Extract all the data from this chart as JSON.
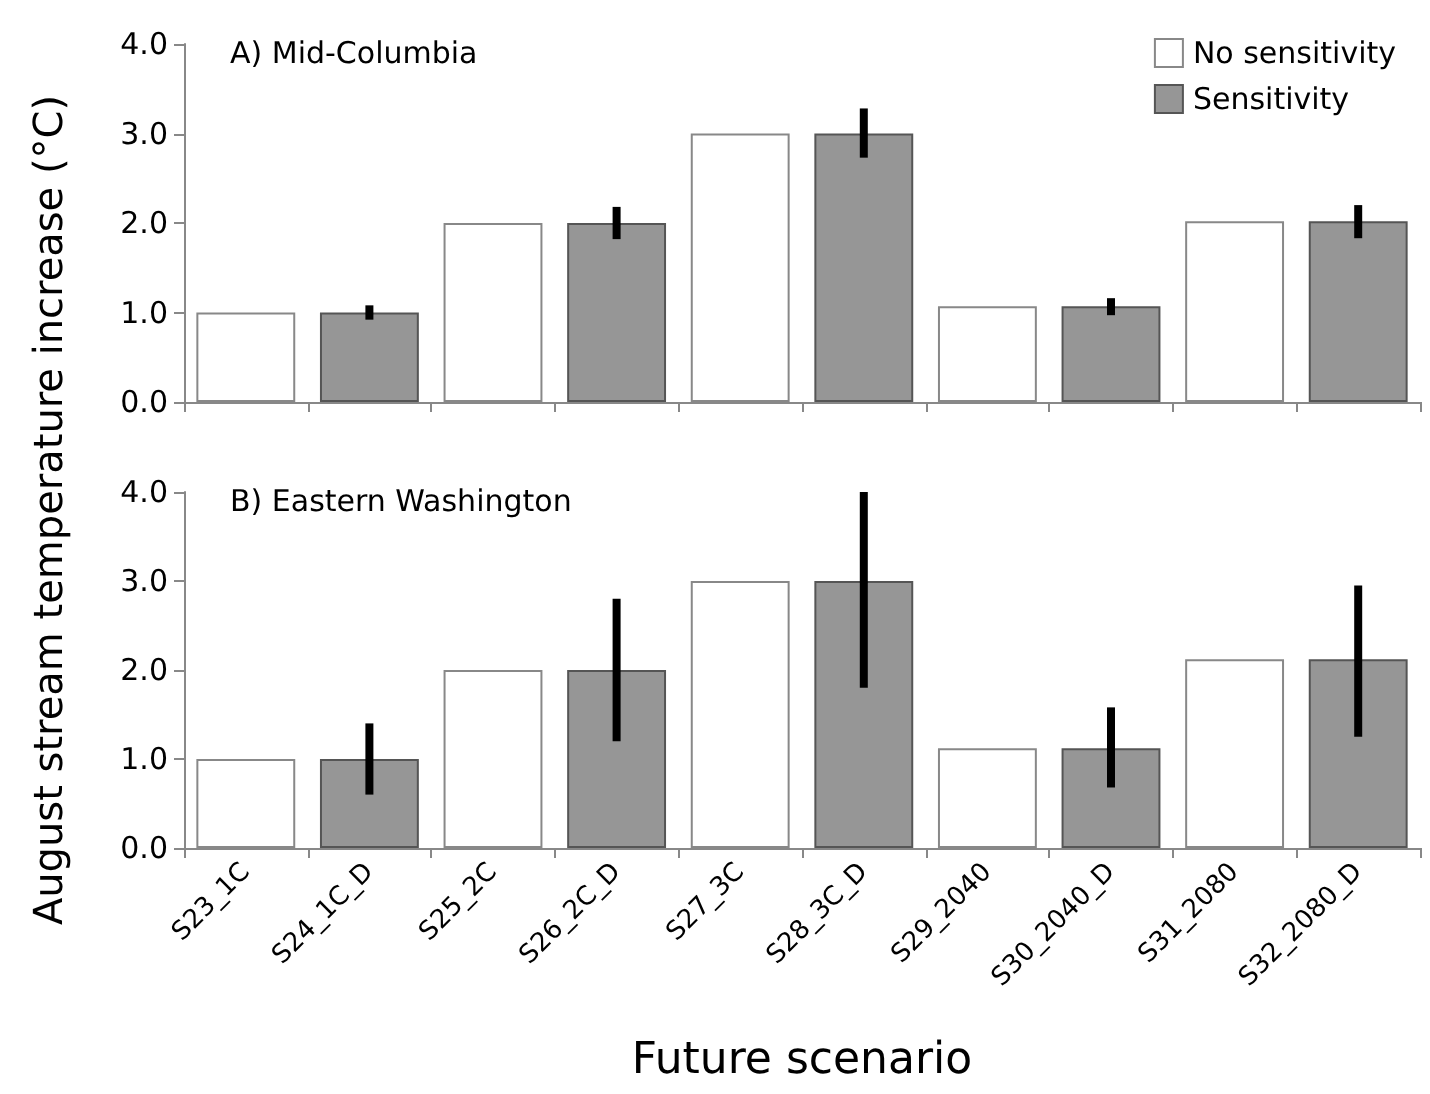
{
  "chart_data": [
    {
      "type": "bar",
      "title": "A) Mid-Columbia",
      "ylabel": "August stream temperature increase (°C)",
      "categories": [
        null,
        null,
        null,
        null,
        null,
        null,
        null,
        null,
        null,
        null
      ],
      "series": [
        {
          "name": "No sensitivity",
          "color": "#ffffff",
          "values": [
            1.0,
            null,
            2.0,
            null,
            3.0,
            null,
            1.07,
            null,
            2.02,
            null
          ]
        },
        {
          "name": "Sensitivity",
          "color": "#969696",
          "values": [
            null,
            1.0,
            null,
            2.0,
            null,
            3.0,
            null,
            1.07,
            null,
            2.02
          ],
          "errors": [
            null,
            [
              0.92,
              1.08
            ],
            null,
            [
              1.82,
              2.18
            ],
            null,
            [
              2.73,
              3.28
            ],
            null,
            [
              0.97,
              1.16
            ],
            null,
            [
              1.83,
              2.2
            ]
          ]
        }
      ],
      "ylim": [
        0,
        4
      ],
      "yticks": [
        {
          "value": 0,
          "label": "0.0"
        },
        {
          "value": 1,
          "label": "1.0"
        },
        {
          "value": 2,
          "label": "2.0"
        },
        {
          "value": 3,
          "label": "3.0"
        },
        {
          "value": 4,
          "label": "4.0"
        }
      ],
      "legend": "top right",
      "grid": false,
      "tick_labels": "y"
    },
    {
      "type": "bar",
      "title": "B) Eastern Washington",
      "xlabel": "Future scenario",
      "categories": [
        "S23_1C",
        "S24_1C_D",
        "S25_2C",
        "S26_2C_D",
        "S27_3C",
        "S28_3C_D",
        "S29_2040",
        "S30_2040_D",
        "S31_2080",
        "S32_2080_D"
      ],
      "series": [
        {
          "color": "#ffffff",
          "values": [
            1.0,
            null,
            2.0,
            null,
            3.0,
            null,
            1.12,
            null,
            2.12,
            null
          ]
        },
        {
          "color": "#969696",
          "values": [
            null,
            1.0,
            null,
            2.0,
            null,
            3.0,
            null,
            1.12,
            null,
            2.12
          ],
          "errors": [
            null,
            [
              0.6,
              1.4
            ],
            null,
            [
              1.2,
              2.8
            ],
            null,
            [
              1.8,
              4.0
            ],
            null,
            [
              0.68,
              1.58
            ],
            null,
            [
              1.25,
              2.95
            ]
          ]
        }
      ],
      "ylim": [
        0,
        4
      ],
      "yticks": [
        {
          "value": 0,
          "label": "0.0"
        },
        {
          "value": 1,
          "label": "1.0"
        },
        {
          "value": 2,
          "label": "2.0"
        },
        {
          "value": 3,
          "label": "3.0"
        },
        {
          "value": 4,
          "label": "4.0"
        }
      ],
      "grid": false
    }
  ]
}
